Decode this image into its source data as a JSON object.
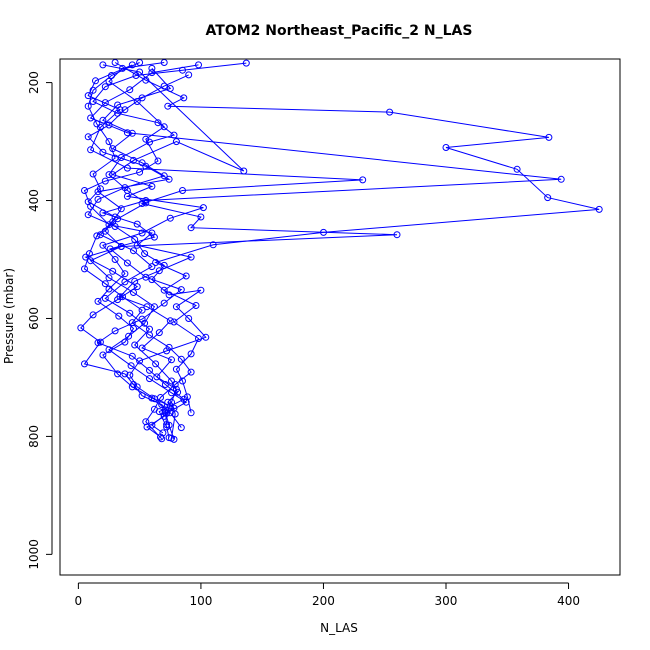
{
  "chart_data": {
    "type": "line",
    "title": "ATOM2 Northeast_Pacific_2 N_LAS",
    "xlabel": "N_LAS",
    "ylabel": "Pressure (mbar)",
    "xlim": [
      -15,
      442
    ],
    "ylim": [
      1035,
      160
    ],
    "y_reversed": true,
    "x_ticks": [
      0,
      100,
      200,
      300,
      400
    ],
    "y_ticks": [
      200,
      400,
      600,
      800,
      1000
    ],
    "grid": false,
    "legend": "none",
    "colors": {
      "series": "#0000ff",
      "frame": "#000000",
      "background": "#ffffff"
    },
    "series": [
      {
        "points": [
          [
            137,
            167
          ],
          [
            85,
            179
          ],
          [
            47,
            188
          ],
          [
            22,
            207
          ],
          [
            12,
            232
          ],
          [
            32,
            252
          ],
          [
            65,
            268
          ],
          [
            78,
            289
          ],
          [
            58,
            301
          ],
          [
            35,
            327
          ],
          [
            25,
            356
          ],
          [
            40,
            383
          ],
          [
            55,
            404
          ],
          [
            32,
            431
          ],
          [
            18,
            458
          ],
          [
            45,
            485
          ],
          [
            60,
            512
          ],
          [
            38,
            538
          ],
          [
            22,
            566
          ],
          [
            42,
            591
          ],
          [
            58,
            618
          ],
          [
            46,
            645
          ],
          [
            63,
            677
          ],
          [
            76,
            706
          ],
          [
            81,
            725
          ],
          [
            73,
            742
          ],
          [
            78,
            752
          ],
          [
            71,
            760
          ],
          [
            74,
            781
          ],
          [
            78,
            805
          ]
        ]
      },
      {
        "points": [
          [
            50,
            166
          ],
          [
            27,
            188
          ],
          [
            12,
            213
          ],
          [
            8,
            240
          ],
          [
            15,
            270
          ],
          [
            25,
            300
          ],
          [
            30,
            328
          ],
          [
            12,
            355
          ],
          [
            18,
            380
          ],
          [
            8,
            402
          ],
          [
            30,
            428
          ],
          [
            22,
            452
          ],
          [
            35,
            478
          ],
          [
            10,
            502
          ],
          [
            25,
            531
          ],
          [
            45,
            556
          ],
          [
            62,
            580
          ],
          [
            54,
            608
          ],
          [
            41,
            630
          ],
          [
            25,
            653
          ],
          [
            43,
            680
          ],
          [
            58,
            702
          ],
          [
            76,
            726
          ],
          [
            88,
            742
          ],
          [
            72,
            761
          ],
          [
            60,
            781
          ],
          [
            69,
            794
          ]
        ]
      },
      {
        "points": [
          [
            30,
            166
          ],
          [
            55,
            196
          ],
          [
            86,
            226
          ],
          [
            73,
            240
          ],
          [
            254,
            250
          ],
          [
            384,
            293
          ],
          [
            300,
            310
          ],
          [
            358,
            347
          ],
          [
            383,
            395
          ],
          [
            425,
            415
          ],
          [
            200,
            454
          ],
          [
            110,
            475
          ],
          [
            63,
            505
          ],
          [
            88,
            528
          ],
          [
            70,
            552
          ],
          [
            96,
            578
          ],
          [
            78,
            606
          ],
          [
            98,
            634
          ],
          [
            92,
            660
          ],
          [
            80,
            686
          ],
          [
            85,
            706
          ],
          [
            89,
            733
          ],
          [
            92,
            760
          ]
        ]
      },
      {
        "points": [
          [
            44,
            170
          ],
          [
            14,
            197
          ],
          [
            8,
            222
          ],
          [
            34,
            246
          ],
          [
            18,
            276
          ],
          [
            10,
            314
          ],
          [
            40,
            345
          ],
          [
            232,
            365
          ],
          [
            85,
            383
          ],
          [
            52,
            405
          ],
          [
            100,
            428
          ],
          [
            92,
            446
          ],
          [
            260,
            458
          ],
          [
            35,
            478
          ],
          [
            6,
            496
          ],
          [
            28,
            520
          ],
          [
            48,
            546
          ],
          [
            32,
            568
          ],
          [
            12,
            594
          ],
          [
            2,
            616
          ],
          [
            18,
            640
          ],
          [
            5,
            677
          ],
          [
            38,
            694
          ],
          [
            45,
            712
          ],
          [
            52,
            731
          ],
          [
            68,
            746
          ],
          [
            75,
            760
          ],
          [
            84,
            785
          ]
        ]
      },
      {
        "points": [
          [
            98,
            170
          ],
          [
            60,
            183
          ],
          [
            42,
            212
          ],
          [
            22,
            234
          ],
          [
            10,
            260
          ],
          [
            40,
            285
          ],
          [
            394,
            364
          ],
          [
            55,
            400
          ],
          [
            20,
            421
          ],
          [
            48,
            440
          ],
          [
            62,
            462
          ],
          [
            26,
            482
          ],
          [
            40,
            506
          ],
          [
            55,
            530
          ],
          [
            84,
            551
          ],
          [
            70,
            574
          ],
          [
            52,
            601
          ],
          [
            30,
            621
          ],
          [
            16,
            641
          ],
          [
            44,
            664
          ],
          [
            58,
            688
          ],
          [
            71,
            712
          ],
          [
            86,
            737
          ],
          [
            66,
            758
          ],
          [
            72,
            784
          ],
          [
            74,
            802
          ]
        ]
      },
      {
        "points": [
          [
            20,
            170
          ],
          [
            50,
            182
          ],
          [
            135,
            350
          ],
          [
            80,
            300
          ],
          [
            45,
            332
          ],
          [
            28,
            356
          ],
          [
            60,
            376
          ],
          [
            40,
            393
          ],
          [
            102,
            412
          ],
          [
            75,
            430
          ],
          [
            52,
            455
          ],
          [
            20,
            476
          ],
          [
            30,
            500
          ],
          [
            38,
            524
          ],
          [
            25,
            550
          ],
          [
            16,
            571
          ],
          [
            33,
            596
          ],
          [
            45,
            617
          ],
          [
            38,
            640
          ],
          [
            20,
            662
          ],
          [
            32,
            694
          ],
          [
            44,
            716
          ],
          [
            60,
            735
          ],
          [
            75,
            748
          ],
          [
            70,
            766
          ],
          [
            56,
            784
          ],
          [
            67,
            801
          ]
        ]
      },
      {
        "points": [
          [
            70,
            166
          ],
          [
            36,
            176
          ],
          [
            25,
            198
          ],
          [
            48,
            232
          ],
          [
            70,
            275
          ],
          [
            55,
            296
          ],
          [
            65,
            333
          ],
          [
            50,
            352
          ],
          [
            22,
            367
          ],
          [
            5,
            383
          ],
          [
            10,
            410
          ],
          [
            25,
            441
          ],
          [
            60,
            455
          ],
          [
            48,
            476
          ],
          [
            92,
            496
          ],
          [
            66,
            519
          ],
          [
            46,
            537
          ],
          [
            34,
            563
          ],
          [
            56,
            580
          ],
          [
            75,
            604
          ],
          [
            66,
            624
          ],
          [
            52,
            650
          ],
          [
            76,
            670
          ],
          [
            64,
            699
          ],
          [
            80,
            720
          ],
          [
            76,
            742
          ],
          [
            79,
            762
          ],
          [
            76,
            803
          ]
        ]
      },
      {
        "points": [
          [
            90,
            187
          ],
          [
            70,
            206
          ],
          [
            52,
            226
          ],
          [
            38,
            246
          ],
          [
            25,
            272
          ],
          [
            8,
            292
          ],
          [
            20,
            318
          ],
          [
            55,
            342
          ],
          [
            74,
            364
          ],
          [
            16,
            385
          ],
          [
            35,
            414
          ],
          [
            28,
            436
          ],
          [
            15,
            460
          ],
          [
            9,
            490
          ],
          [
            5,
            516
          ],
          [
            22,
            541
          ],
          [
            36,
            563
          ],
          [
            52,
            586
          ],
          [
            44,
            607
          ],
          [
            58,
            628
          ],
          [
            74,
            649
          ],
          [
            84,
            669
          ],
          [
            92,
            691
          ],
          [
            79,
            712
          ],
          [
            67,
            734
          ],
          [
            62,
            754
          ],
          [
            55,
            775
          ],
          [
            68,
            804
          ]
        ]
      },
      {
        "points": [
          [
            60,
            176
          ],
          [
            75,
            210
          ],
          [
            32,
            238
          ],
          [
            20,
            264
          ],
          [
            44,
            286
          ],
          [
            28,
            312
          ],
          [
            52,
            336
          ],
          [
            70,
            358
          ],
          [
            38,
            378
          ],
          [
            16,
            398
          ],
          [
            8,
            424
          ],
          [
            30,
            444
          ],
          [
            46,
            466
          ],
          [
            54,
            490
          ],
          [
            70,
            510
          ],
          [
            60,
            534
          ],
          [
            74,
            560
          ],
          [
            100,
            552
          ],
          [
            80,
            580
          ],
          [
            90,
            600
          ],
          [
            104,
            632
          ],
          [
            72,
            655
          ],
          [
            50,
            672
          ],
          [
            42,
            696
          ],
          [
            48,
            716
          ],
          [
            62,
            736
          ],
          [
            71,
            755
          ],
          [
            72,
            780
          ]
        ]
      }
    ]
  }
}
